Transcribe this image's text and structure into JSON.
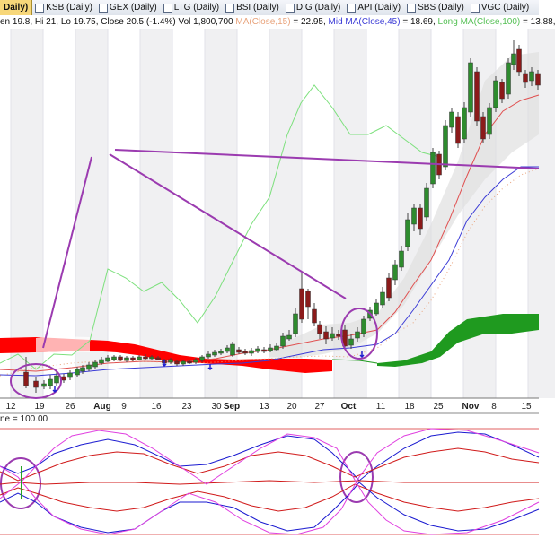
{
  "tabs": {
    "active": "Daily)",
    "items": [
      "KSB (Daily)",
      "GEX (Daily)",
      "LTG (Daily)",
      "BSI (Daily)",
      "DIG (Daily)",
      "API (Daily)",
      "SBS (Daily)",
      "VGC (Daily)"
    ]
  },
  "info": {
    "ohlc": "en 19.8, Hi 21, Lo 19.75, Close 20.5 (-1.4%) Vol 1,800,700",
    "ma15_label": "MA(Close,15)",
    "ma15_value": "= 22.95,",
    "ma45_label": "Mid MA(Close,45)",
    "ma45_value": "= 18.69,",
    "ma100_label": "Long MA(Close,100)",
    "ma100_value": "= 13.88,"
  },
  "lower_panel_label": "ne = 100.00",
  "colors": {
    "up_candle": "#2e8b2e",
    "down_candle": "#8b1a1a",
    "ma15": "#e8a27a",
    "ma45": "#3b3bd6",
    "ma100": "#7de07d",
    "cloud_bear": "#ff0000",
    "cloud_bull": "#1f9a1f",
    "trendline": "#9b3bb0",
    "osc_blue": "#1a1ad0",
    "osc_red": "#d01a1a",
    "osc_magenta": "#e040e0"
  },
  "chart_data": {
    "type": "candlestick",
    "x_ticks": [
      "12",
      "19",
      "26",
      "Aug",
      "9",
      "16",
      "23",
      "30",
      "Sep",
      "13",
      "20",
      "27",
      "Oct",
      "11",
      "18",
      "25",
      "Nov",
      "8",
      "15"
    ],
    "month_ticks": [
      "Aug",
      "Sep",
      "Oct",
      "Nov"
    ],
    "series": [
      {
        "name": "MA(Close,15)"
      },
      {
        "name": "Mid MA(Close,45)"
      },
      {
        "name": "Long MA(Close,100)"
      }
    ],
    "candles": [
      [
        29,
        415,
        430,
        398,
        433,
        "d"
      ],
      [
        40,
        425,
        432,
        421,
        438,
        "d"
      ],
      [
        49,
        431,
        428,
        424,
        434,
        "u"
      ],
      [
        56,
        430,
        423,
        418,
        434,
        "u"
      ],
      [
        63,
        427,
        419,
        415,
        430,
        "u"
      ],
      [
        71,
        420,
        424,
        417,
        427,
        "d"
      ],
      [
        78,
        421,
        416,
        413,
        424,
        "u"
      ],
      [
        86,
        418,
        412,
        409,
        420,
        "u"
      ],
      [
        92,
        414,
        410,
        407,
        417,
        "u"
      ],
      [
        99,
        412,
        407,
        404,
        414,
        "u"
      ],
      [
        106,
        409,
        404,
        401,
        411,
        "u"
      ],
      [
        113,
        405,
        401,
        398,
        407,
        "u"
      ],
      [
        120,
        403,
        399,
        396,
        404,
        "u"
      ],
      [
        127,
        401,
        398,
        396,
        403,
        "u"
      ],
      [
        134,
        398,
        401,
        396,
        403,
        "d"
      ],
      [
        141,
        402,
        399,
        397,
        404,
        "u"
      ],
      [
        148,
        399,
        401,
        397,
        403,
        "d"
      ],
      [
        155,
        401,
        398,
        396,
        402,
        "u"
      ],
      [
        162,
        398,
        400,
        395,
        402,
        "d"
      ],
      [
        169,
        400,
        398,
        396,
        401,
        "u"
      ],
      [
        176,
        399,
        401,
        397,
        402,
        "d"
      ],
      [
        183,
        402,
        405,
        400,
        408,
        "d"
      ],
      [
        190,
        404,
        401,
        399,
        406,
        "u"
      ],
      [
        197,
        403,
        406,
        401,
        408,
        "d"
      ],
      [
        204,
        406,
        403,
        401,
        408,
        "u"
      ],
      [
        211,
        403,
        405,
        401,
        406,
        "d"
      ],
      [
        218,
        404,
        401,
        399,
        406,
        "u"
      ],
      [
        225,
        402,
        398,
        396,
        404,
        "u"
      ],
      [
        232,
        398,
        395,
        392,
        400,
        "u"
      ],
      [
        239,
        396,
        393,
        390,
        398,
        "u"
      ],
      [
        246,
        394,
        392,
        389,
        396,
        "u"
      ],
      [
        253,
        392,
        388,
        385,
        394,
        "u"
      ],
      [
        259,
        396,
        384,
        381,
        398,
        "u"
      ],
      [
        266,
        390,
        393,
        387,
        395,
        "d"
      ],
      [
        273,
        392,
        394,
        389,
        396,
        "d"
      ],
      [
        280,
        394,
        391,
        388,
        397,
        "u"
      ],
      [
        287,
        392,
        389,
        386,
        394,
        "u"
      ],
      [
        294,
        390,
        392,
        387,
        394,
        "d"
      ],
      [
        301,
        391,
        388,
        384,
        393,
        "u"
      ],
      [
        308,
        390,
        386,
        382,
        392,
        "u"
      ],
      [
        315,
        386,
        375,
        371,
        389,
        "u"
      ],
      [
        322,
        378,
        374,
        368,
        380,
        "u"
      ],
      [
        329,
        372,
        350,
        344,
        376,
        "u"
      ],
      [
        336,
        356,
        322,
        303,
        360,
        "d"
      ],
      [
        343,
        325,
        342,
        322,
        356,
        "d"
      ],
      [
        350,
        345,
        360,
        338,
        364,
        "d"
      ],
      [
        356,
        362,
        372,
        358,
        378,
        "d"
      ],
      [
        363,
        370,
        378,
        364,
        384,
        "d"
      ],
      [
        370,
        377,
        372,
        365,
        380,
        "u"
      ],
      [
        377,
        373,
        375,
        368,
        379,
        "d"
      ],
      [
        384,
        368,
        386,
        362,
        390,
        "d"
      ],
      [
        391,
        385,
        378,
        372,
        389,
        "u"
      ],
      [
        398,
        377,
        370,
        365,
        381,
        "u"
      ],
      [
        405,
        372,
        356,
        352,
        376,
        "u"
      ],
      [
        412,
        355,
        346,
        342,
        358,
        "u"
      ],
      [
        419,
        350,
        338,
        334,
        352,
        "u"
      ],
      [
        426,
        340,
        326,
        320,
        344,
        "u"
      ],
      [
        433,
        332,
        310,
        304,
        336,
        "d"
      ],
      [
        440,
        312,
        295,
        290,
        318,
        "u"
      ],
      [
        447,
        298,
        280,
        274,
        302,
        "u"
      ],
      [
        454,
        275,
        245,
        238,
        280,
        "u"
      ],
      [
        461,
        250,
        232,
        228,
        258,
        "u"
      ],
      [
        468,
        232,
        255,
        228,
        262,
        "d"
      ],
      [
        475,
        242,
        210,
        204,
        246,
        "u"
      ],
      [
        482,
        205,
        170,
        165,
        210,
        "u"
      ],
      [
        489,
        172,
        195,
        168,
        200,
        "d"
      ],
      [
        496,
        186,
        140,
        134,
        190,
        "u"
      ],
      [
        503,
        142,
        125,
        120,
        148,
        "u"
      ],
      [
        510,
        130,
        160,
        125,
        165,
        "d"
      ],
      [
        517,
        155,
        120,
        114,
        160,
        "u"
      ],
      [
        524,
        125,
        70,
        65,
        130,
        "u"
      ],
      [
        531,
        80,
        135,
        75,
        140,
        "d"
      ],
      [
        538,
        130,
        155,
        125,
        160,
        "d"
      ],
      [
        545,
        150,
        120,
        115,
        155,
        "u"
      ],
      [
        552,
        120,
        90,
        85,
        125,
        "u"
      ],
      [
        559,
        92,
        110,
        88,
        115,
        "d"
      ],
      [
        566,
        105,
        70,
        65,
        110,
        "u"
      ],
      [
        572,
        72,
        60,
        45,
        78,
        "u"
      ],
      [
        578,
        55,
        80,
        50,
        85,
        "d"
      ],
      [
        585,
        82,
        92,
        78,
        98,
        "d"
      ],
      [
        592,
        90,
        80,
        75,
        96,
        "u"
      ],
      [
        599,
        82,
        95,
        78,
        100,
        "d"
      ]
    ]
  }
}
